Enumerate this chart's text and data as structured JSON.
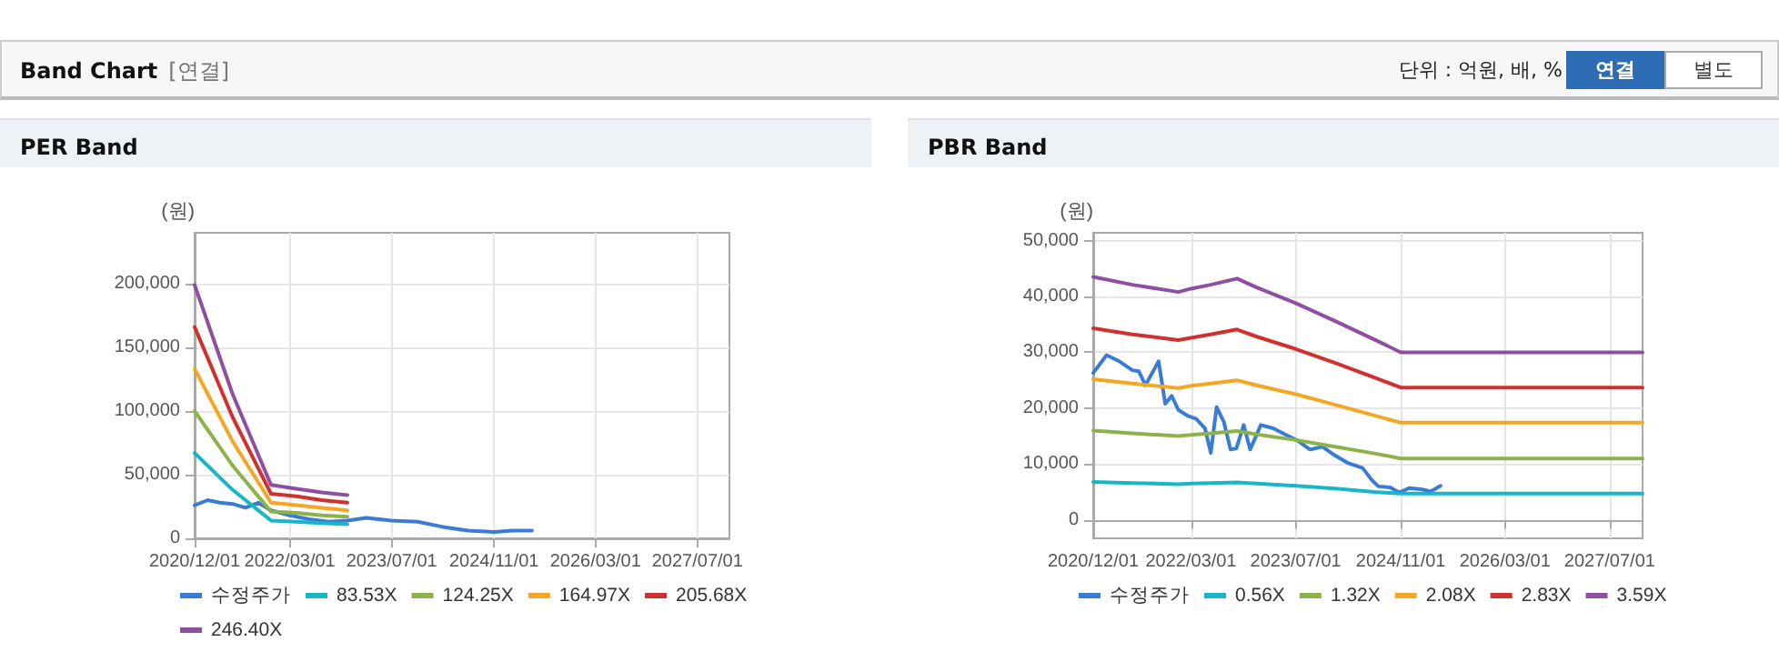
{
  "chart_data": [
    {
      "type": "other",
      "title": "Band Chart",
      "annotations": [
        "[연결]",
        "단위 : 억원, 배, %",
        "연결",
        "별도"
      ]
    },
    {
      "type": "line",
      "title": "PER Band",
      "ylabel": "(원)",
      "xlim": [
        "2020-12-01",
        "2027-12-01"
      ],
      "xticks": [
        {
          "value": "2020-12-01",
          "label": "2020/12/01"
        },
        {
          "value": "2022-03-01",
          "label": "2022/03/01"
        },
        {
          "value": "2023-07-01",
          "label": "2023/07/01"
        },
        {
          "value": "2024-11-01",
          "label": "2024/11/01"
        },
        {
          "value": "2026-03-01",
          "label": "2026/03/01"
        },
        {
          "value": "2027-07-01",
          "label": "2027/07/01"
        }
      ],
      "ylim": [
        0,
        240000
      ],
      "yticks": [
        0,
        {
          "value": 50000,
          "label": "50,000"
        },
        {
          "value": 100000,
          "label": "100,000"
        },
        {
          "value": 150000,
          "label": "150,000"
        },
        {
          "value": 200000,
          "label": "200,000"
        }
      ],
      "grid": true,
      "legend": "bottom",
      "marker": "none",
      "line_style": "solid",
      "series": [
        {
          "name": "수정주가",
          "color": "#3a7bd5",
          "x": [
            "2020-12-01",
            "2021-02-01",
            "2021-04-01",
            "2021-06-01",
            "2021-08-01",
            "2021-10-01",
            "2021-12-01",
            "2022-03-01",
            "2022-06-01",
            "2022-09-01",
            "2022-12-01",
            "2023-03-01",
            "2023-07-01",
            "2023-11-01",
            "2024-03-01",
            "2024-07-01",
            "2024-11-01",
            "2025-02-01",
            "2025-05-01"
          ],
          "values": [
            26000,
            30000,
            28000,
            27000,
            24000,
            28000,
            22000,
            18000,
            15000,
            13000,
            14000,
            16000,
            14000,
            13000,
            9000,
            6000,
            5000,
            6000,
            6000
          ]
        },
        {
          "name": "83.53X",
          "color": "#17b6c8",
          "x": [
            "2020-12-01",
            "2021-06-01",
            "2021-12-01",
            "2022-04-01",
            "2022-08-01",
            "2022-12-01"
          ],
          "values": [
            67000,
            38000,
            14000,
            13000,
            12000,
            11000
          ]
        },
        {
          "name": "124.25X",
          "color": "#8cb34a",
          "x": [
            "2020-12-01",
            "2021-06-01",
            "2021-12-01",
            "2022-04-01",
            "2022-08-01",
            "2022-12-01"
          ],
          "values": [
            100000,
            57000,
            21000,
            20000,
            18000,
            17000
          ]
        },
        {
          "name": "164.97X",
          "color": "#f5a623",
          "x": [
            "2020-12-01",
            "2021-06-01",
            "2021-12-01",
            "2022-04-01",
            "2022-08-01",
            "2022-12-01"
          ],
          "values": [
            133000,
            76000,
            28000,
            26000,
            24000,
            22000
          ]
        },
        {
          "name": "205.68X",
          "color": "#d0312d",
          "x": [
            "2020-12-01",
            "2021-06-01",
            "2021-12-01",
            "2022-04-01",
            "2022-08-01",
            "2022-12-01"
          ],
          "values": [
            166000,
            95000,
            35000,
            33000,
            30000,
            28000
          ]
        },
        {
          "name": "246.40X",
          "color": "#8e4fa0",
          "x": [
            "2020-12-01",
            "2021-06-01",
            "2021-12-01",
            "2022-04-01",
            "2022-08-01",
            "2022-12-01"
          ],
          "values": [
            199000,
            113000,
            42000,
            39000,
            36000,
            34000
          ]
        }
      ]
    },
    {
      "type": "line",
      "title": "PBR Band",
      "ylabel": "(원)",
      "xlim": [
        "2020-12-01",
        "2027-12-01"
      ],
      "xticks": [
        {
          "value": "2020-12-01",
          "label": "2020/12/01"
        },
        {
          "value": "2022-03-01",
          "label": "2022/03/01"
        },
        {
          "value": "2023-07-01",
          "label": "2023/07/01"
        },
        {
          "value": "2024-11-01",
          "label": "2024/11/01"
        },
        {
          "value": "2026-03-01",
          "label": "2026/03/01"
        },
        {
          "value": "2027-07-01",
          "label": "2027/07/01"
        }
      ],
      "ylim": [
        -3300,
        51400
      ],
      "yticks": [
        0,
        {
          "value": 10000,
          "label": "10,000"
        },
        {
          "value": 20000,
          "label": "20,000"
        },
        {
          "value": 30000,
          "label": "30,000"
        },
        {
          "value": 40000,
          "label": "40,000"
        },
        {
          "value": 50000,
          "label": "50,000"
        }
      ],
      "grid": true,
      "legend": "bottom",
      "marker": "none",
      "line_style": "solid",
      "series": [
        {
          "name": "수정주가",
          "color": "#3a7bd5",
          "x": [
            "2020-12-01",
            "2021-02-01",
            "2021-04-01",
            "2021-06-01",
            "2021-07-01",
            "2021-08-01",
            "2021-10-01",
            "2021-11-01",
            "2021-12-01",
            "2022-01-01",
            "2022-02-15",
            "2022-03-25",
            "2022-05-05",
            "2022-06-01",
            "2022-06-28",
            "2022-08-01",
            "2022-09-01",
            "2022-09-28",
            "2022-11-01",
            "2022-12-01",
            "2023-01-20",
            "2023-03-18",
            "2023-05-13",
            "2023-07-10",
            "2023-09-06",
            "2023-11-03",
            "2024-01-01",
            "2024-02-28",
            "2024-05-07",
            "2024-06-20",
            "2024-07-20",
            "2024-09-13",
            "2024-10-25",
            "2024-12-10",
            "2025-02-03",
            "2025-03-20",
            "2025-05-05"
          ],
          "values": [
            26300,
            29500,
            28400,
            26800,
            26600,
            24100,
            28400,
            20800,
            22200,
            19700,
            18600,
            18100,
            16400,
            12000,
            20200,
            17500,
            12600,
            12800,
            17000,
            12600,
            17000,
            16400,
            15300,
            14200,
            12600,
            13100,
            11500,
            10200,
            9300,
            7100,
            6000,
            5800,
            4900,
            5700,
            5500,
            5100,
            6100
          ]
        },
        {
          "name": "0.56X",
          "color": "#17b6c8",
          "x": [
            "2020-12-01",
            "2021-06-01",
            "2022-01-01",
            "2022-03-01",
            "2022-06-01",
            "2022-10-01",
            "2023-01-01",
            "2023-07-01",
            "2024-01-01",
            "2024-07-01",
            "2024-11-01",
            "2027-12-01"
          ],
          "values": [
            6800,
            6600,
            6400,
            6500,
            6600,
            6700,
            6500,
            6100,
            5600,
            5000,
            4700,
            4700
          ]
        },
        {
          "name": "1.32X",
          "color": "#8cb34a",
          "x": [
            "2020-12-01",
            "2021-06-01",
            "2022-01-01",
            "2022-03-01",
            "2022-06-01",
            "2022-10-01",
            "2023-01-01",
            "2023-07-01",
            "2024-01-01",
            "2024-07-01",
            "2024-11-01",
            "2027-12-01"
          ],
          "values": [
            16000,
            15500,
            15000,
            15200,
            15500,
            15900,
            15300,
            14300,
            13100,
            11900,
            11000,
            11000
          ]
        },
        {
          "name": "2.08X",
          "color": "#f5a623",
          "x": [
            "2020-12-01",
            "2021-06-01",
            "2022-01-01",
            "2022-03-01",
            "2022-06-01",
            "2022-10-01",
            "2023-01-01",
            "2023-07-01",
            "2024-01-01",
            "2024-07-01",
            "2024-11-01",
            "2027-12-01"
          ],
          "values": [
            25200,
            24400,
            23600,
            24000,
            24400,
            25000,
            24100,
            22500,
            20600,
            18700,
            17400,
            17400
          ]
        },
        {
          "name": "2.83X",
          "color": "#d0312d",
          "x": [
            "2020-12-01",
            "2021-06-01",
            "2022-01-01",
            "2022-03-01",
            "2022-06-01",
            "2022-10-01",
            "2023-01-01",
            "2023-07-01",
            "2024-01-01",
            "2024-07-01",
            "2024-11-01",
            "2027-12-01"
          ],
          "values": [
            34300,
            33200,
            32200,
            32600,
            33200,
            34100,
            32800,
            30600,
            28100,
            25500,
            23700,
            23700
          ]
        },
        {
          "name": "3.59X",
          "color": "#8e4fa0",
          "x": [
            "2020-12-01",
            "2021-06-01",
            "2022-01-01",
            "2022-03-01",
            "2022-06-01",
            "2022-10-01",
            "2023-01-01",
            "2023-07-01",
            "2024-01-01",
            "2024-07-01",
            "2024-11-01",
            "2027-12-01"
          ],
          "values": [
            43500,
            42100,
            40800,
            41400,
            42100,
            43200,
            41600,
            38800,
            35600,
            32300,
            30000,
            30000
          ]
        }
      ]
    }
  ]
}
